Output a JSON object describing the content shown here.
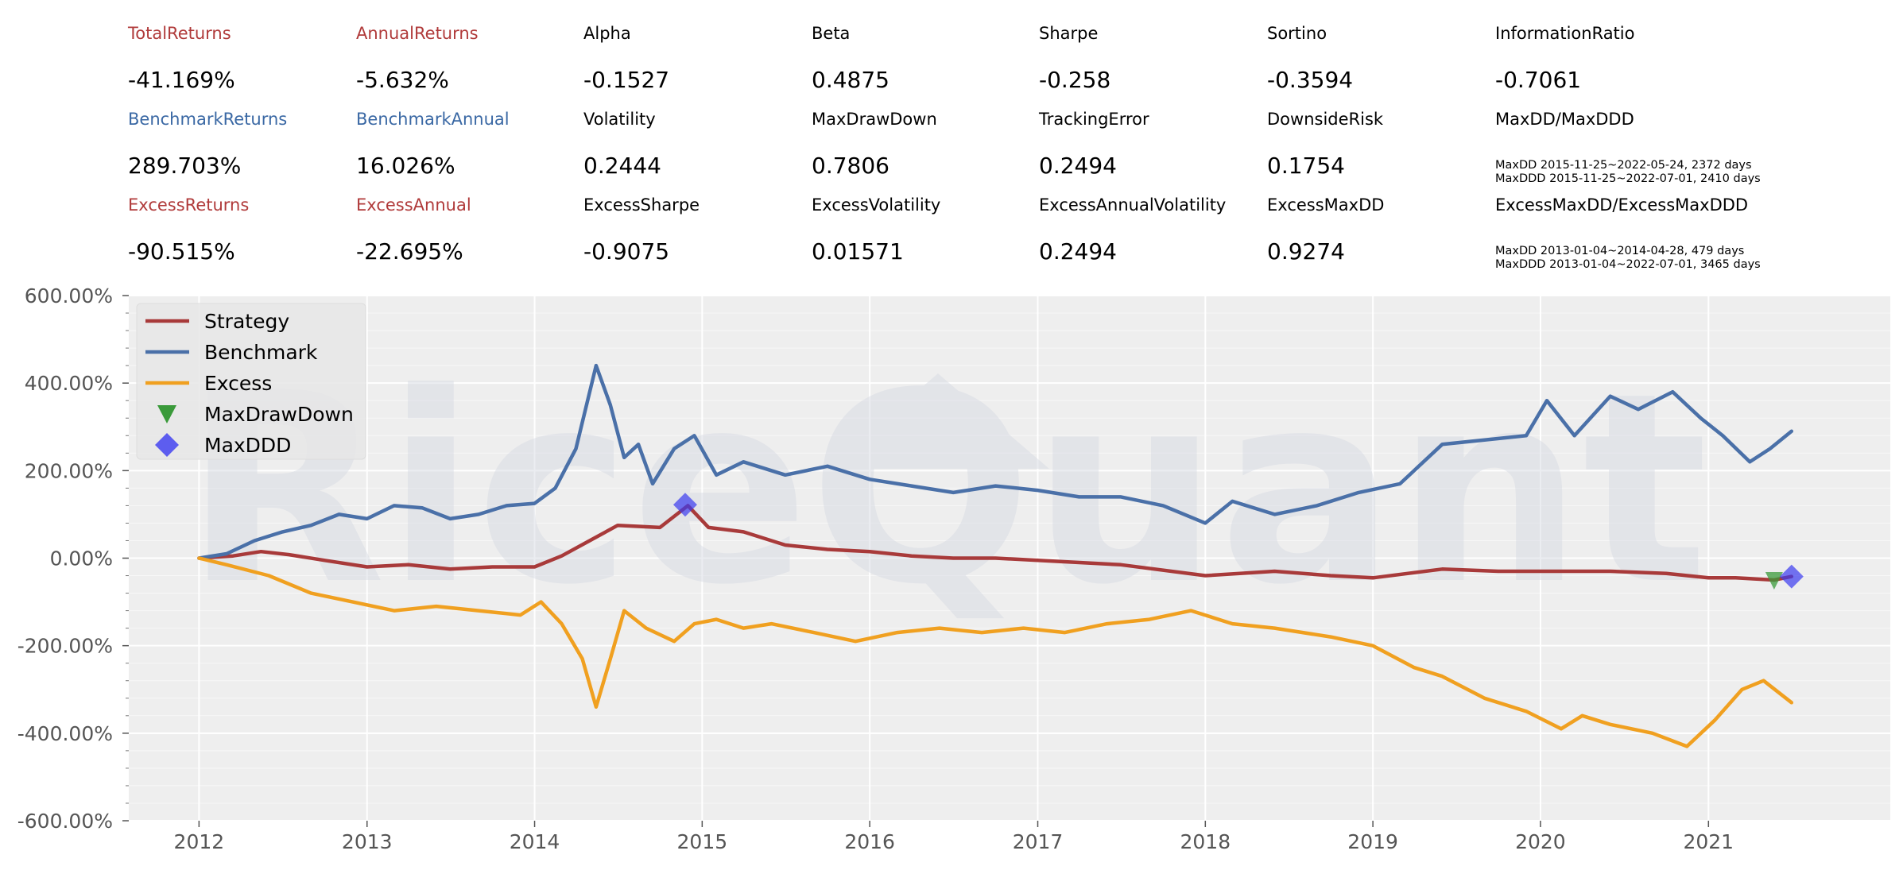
{
  "stats": [
    {
      "label": "TotalReturns",
      "value": "-41.169%",
      "color": "#b03a3a"
    },
    {
      "label": "AnnualReturns",
      "value": "-5.632%",
      "color": "#b03a3a"
    },
    {
      "label": "Alpha",
      "value": "-0.1527",
      "color": "#000000"
    },
    {
      "label": "Beta",
      "value": "0.4875",
      "color": "#000000"
    },
    {
      "label": "Sharpe",
      "value": "-0.258",
      "color": "#000000"
    },
    {
      "label": "Sortino",
      "value": "-0.3594",
      "color": "#000000"
    },
    {
      "label": "InformationRatio",
      "value": "-0.7061",
      "color": "#000000"
    },
    {
      "label": "BenchmarkReturns",
      "value": "289.703%",
      "color": "#3a68a4"
    },
    {
      "label": "BenchmarkAnnual",
      "value": "16.026%",
      "color": "#3a68a4"
    },
    {
      "label": "Volatility",
      "value": "0.2444",
      "color": "#000000"
    },
    {
      "label": "MaxDrawDown",
      "value": "0.7806",
      "color": "#000000"
    },
    {
      "label": "TrackingError",
      "value": "0.2494",
      "color": "#000000"
    },
    {
      "label": "DownsideRisk",
      "value": "0.1754",
      "color": "#000000"
    },
    {
      "label": "MaxDD/MaxDDD",
      "value": "MaxDD 2015-11-25~2022-05-24, 2372 days\nMaxDDD 2015-11-25~2022-07-01, 2410 days",
      "color": "#000000",
      "small": true
    },
    {
      "label": "ExcessReturns",
      "value": "-90.515%",
      "color": "#b03a3a"
    },
    {
      "label": "ExcessAnnual",
      "value": "-22.695%",
      "color": "#b03a3a"
    },
    {
      "label": "ExcessSharpe",
      "value": "-0.9075",
      "color": "#000000"
    },
    {
      "label": "ExcessVolatility",
      "value": "0.01571",
      "color": "#000000"
    },
    {
      "label": "ExcessAnnualVolatility",
      "value": "0.2494",
      "color": "#000000"
    },
    {
      "label": "ExcessMaxDD",
      "value": "0.9274",
      "color": "#000000"
    },
    {
      "label": "ExcessMaxDD/ExcessMaxDDD",
      "value": "MaxDD 2013-01-04~2014-04-28, 479 days\nMaxDDD 2013-01-04~2022-07-01, 3465 days",
      "color": "#000000",
      "small": true
    }
  ],
  "watermark": "RiceQuant",
  "chart_data": {
    "type": "line",
    "xlabel": "",
    "ylabel": "",
    "x_range": [
      "2011-08-01",
      "2022-02-01"
    ],
    "ylim": [
      -600,
      600
    ],
    "y_ticks": [
      -600,
      -400,
      -200,
      0,
      200,
      400,
      600
    ],
    "y_tick_labels": [
      "-600.00%",
      "-400.00%",
      "-200.00%",
      "0.00%",
      "200.00%",
      "400.00%",
      "600.00%"
    ],
    "x_ticks": [
      "2012-01-01",
      "2013-01-01",
      "2014-01-01",
      "2015-01-01",
      "2016-01-01",
      "2017-01-01",
      "2018-01-01",
      "2019-01-01",
      "2020-01-01",
      "2021-01-01"
    ],
    "x_tick_labels": [
      "2012",
      "2013",
      "2014",
      "2015",
      "2016",
      "2017",
      "2018",
      "2019",
      "2020",
      "2021"
    ],
    "grid": true,
    "legend_position": "top-left",
    "legend": [
      "Strategy",
      "Benchmark",
      "Excess",
      "MaxDrawDown",
      "MaxDDD"
    ],
    "series": [
      {
        "name": "Strategy",
        "color": "#a83a3a",
        "points": [
          [
            "2012-01-01",
            0
          ],
          [
            "2012-03-15",
            5
          ],
          [
            "2012-05-15",
            15
          ],
          [
            "2012-07-15",
            8
          ],
          [
            "2012-10-01",
            -5
          ],
          [
            "2013-01-01",
            -20
          ],
          [
            "2013-04-01",
            -15
          ],
          [
            "2013-07-01",
            -25
          ],
          [
            "2013-10-01",
            -20
          ],
          [
            "2014-01-01",
            -20
          ],
          [
            "2014-03-01",
            5
          ],
          [
            "2014-05-01",
            40
          ],
          [
            "2014-07-01",
            75
          ],
          [
            "2014-10-01",
            70
          ],
          [
            "2014-12-01",
            120
          ],
          [
            "2015-01-15",
            70
          ],
          [
            "2015-04-01",
            60
          ],
          [
            "2015-07-01",
            30
          ],
          [
            "2015-10-01",
            20
          ],
          [
            "2016-01-01",
            15
          ],
          [
            "2016-04-01",
            5
          ],
          [
            "2016-07-01",
            0
          ],
          [
            "2016-10-01",
            0
          ],
          [
            "2017-01-01",
            -5
          ],
          [
            "2017-07-01",
            -15
          ],
          [
            "2018-01-01",
            -40
          ],
          [
            "2018-06-01",
            -30
          ],
          [
            "2018-10-01",
            -40
          ],
          [
            "2019-01-01",
            -45
          ],
          [
            "2019-06-01",
            -25
          ],
          [
            "2019-10-01",
            -30
          ],
          [
            "2020-01-01",
            -30
          ],
          [
            "2020-06-01",
            -30
          ],
          [
            "2020-10-01",
            -35
          ],
          [
            "2021-01-01",
            -45
          ],
          [
            "2021-03-01",
            -45
          ],
          [
            "2021-05-24",
            -50
          ],
          [
            "2021-07-01",
            -42
          ]
        ]
      },
      {
        "name": "Benchmark",
        "color": "#4a70a8",
        "points": [
          [
            "2012-01-01",
            0
          ],
          [
            "2012-03-01",
            10
          ],
          [
            "2012-05-01",
            40
          ],
          [
            "2012-07-01",
            60
          ],
          [
            "2012-09-01",
            75
          ],
          [
            "2012-11-01",
            100
          ],
          [
            "2013-01-01",
            90
          ],
          [
            "2013-03-01",
            120
          ],
          [
            "2013-05-01",
            115
          ],
          [
            "2013-07-01",
            90
          ],
          [
            "2013-09-01",
            100
          ],
          [
            "2013-11-01",
            120
          ],
          [
            "2014-01-01",
            125
          ],
          [
            "2014-02-15",
            160
          ],
          [
            "2014-04-01",
            250
          ],
          [
            "2014-05-15",
            440
          ],
          [
            "2014-06-15",
            350
          ],
          [
            "2014-07-15",
            230
          ],
          [
            "2014-08-15",
            260
          ],
          [
            "2014-09-15",
            170
          ],
          [
            "2014-11-01",
            250
          ],
          [
            "2014-12-15",
            280
          ],
          [
            "2015-02-01",
            190
          ],
          [
            "2015-04-01",
            220
          ],
          [
            "2015-07-01",
            190
          ],
          [
            "2015-10-01",
            210
          ],
          [
            "2016-01-01",
            180
          ],
          [
            "2016-04-01",
            165
          ],
          [
            "2016-07-01",
            150
          ],
          [
            "2016-10-01",
            165
          ],
          [
            "2017-01-01",
            155
          ],
          [
            "2017-04-01",
            140
          ],
          [
            "2017-07-01",
            140
          ],
          [
            "2017-10-01",
            120
          ],
          [
            "2018-01-01",
            80
          ],
          [
            "2018-03-01",
            130
          ],
          [
            "2018-06-01",
            100
          ],
          [
            "2018-09-01",
            120
          ],
          [
            "2018-12-01",
            150
          ],
          [
            "2019-03-01",
            170
          ],
          [
            "2019-06-01",
            260
          ],
          [
            "2019-09-01",
            270
          ],
          [
            "2019-12-01",
            280
          ],
          [
            "2020-01-15",
            360
          ],
          [
            "2020-03-15",
            280
          ],
          [
            "2020-06-01",
            370
          ],
          [
            "2020-08-01",
            340
          ],
          [
            "2020-10-15",
            380
          ],
          [
            "2020-12-15",
            320
          ],
          [
            "2021-02-01",
            280
          ],
          [
            "2021-04-01",
            220
          ],
          [
            "2021-05-15",
            250
          ],
          [
            "2021-07-01",
            290
          ]
        ]
      },
      {
        "name": "Excess",
        "color": "#f0a020",
        "points": [
          [
            "2012-01-01",
            0
          ],
          [
            "2012-03-01",
            -15
          ],
          [
            "2012-06-01",
            -40
          ],
          [
            "2012-09-01",
            -80
          ],
          [
            "2012-12-01",
            -100
          ],
          [
            "2013-03-01",
            -120
          ],
          [
            "2013-06-01",
            -110
          ],
          [
            "2013-09-01",
            -120
          ],
          [
            "2013-12-01",
            -130
          ],
          [
            "2014-01-15",
            -100
          ],
          [
            "2014-03-01",
            -150
          ],
          [
            "2014-04-15",
            -230
          ],
          [
            "2014-05-15",
            -340
          ],
          [
            "2014-06-15",
            -230
          ],
          [
            "2014-07-15",
            -120
          ],
          [
            "2014-09-01",
            -160
          ],
          [
            "2014-11-01",
            -190
          ],
          [
            "2014-12-15",
            -150
          ],
          [
            "2015-02-01",
            -140
          ],
          [
            "2015-04-01",
            -160
          ],
          [
            "2015-06-01",
            -150
          ],
          [
            "2015-09-01",
            -170
          ],
          [
            "2015-12-01",
            -190
          ],
          [
            "2016-03-01",
            -170
          ],
          [
            "2016-06-01",
            -160
          ],
          [
            "2016-09-01",
            -170
          ],
          [
            "2016-12-01",
            -160
          ],
          [
            "2017-03-01",
            -170
          ],
          [
            "2017-06-01",
            -150
          ],
          [
            "2017-09-01",
            -140
          ],
          [
            "2017-12-01",
            -120
          ],
          [
            "2018-03-01",
            -150
          ],
          [
            "2018-06-01",
            -160
          ],
          [
            "2018-10-01",
            -180
          ],
          [
            "2019-01-01",
            -200
          ],
          [
            "2019-04-01",
            -250
          ],
          [
            "2019-06-01",
            -270
          ],
          [
            "2019-09-01",
            -320
          ],
          [
            "2019-12-01",
            -350
          ],
          [
            "2020-02-15",
            -390
          ],
          [
            "2020-04-01",
            -360
          ],
          [
            "2020-06-01",
            -380
          ],
          [
            "2020-09-01",
            -400
          ],
          [
            "2020-11-15",
            -430
          ],
          [
            "2021-01-15",
            -370
          ],
          [
            "2021-03-15",
            -300
          ],
          [
            "2021-05-01",
            -280
          ],
          [
            "2021-07-01",
            -330
          ]
        ]
      }
    ],
    "markers": [
      {
        "name": "MaxDrawDown",
        "shape": "triangle-down",
        "color": "#3a9a3a",
        "points": [
          [
            "2021-05-24",
            -50
          ]
        ]
      },
      {
        "name": "MaxDDD",
        "shape": "diamond",
        "color": "#3a3af0",
        "points": [
          [
            "2014-11-25",
            122
          ],
          [
            "2021-07-01",
            -42
          ]
        ]
      }
    ]
  }
}
